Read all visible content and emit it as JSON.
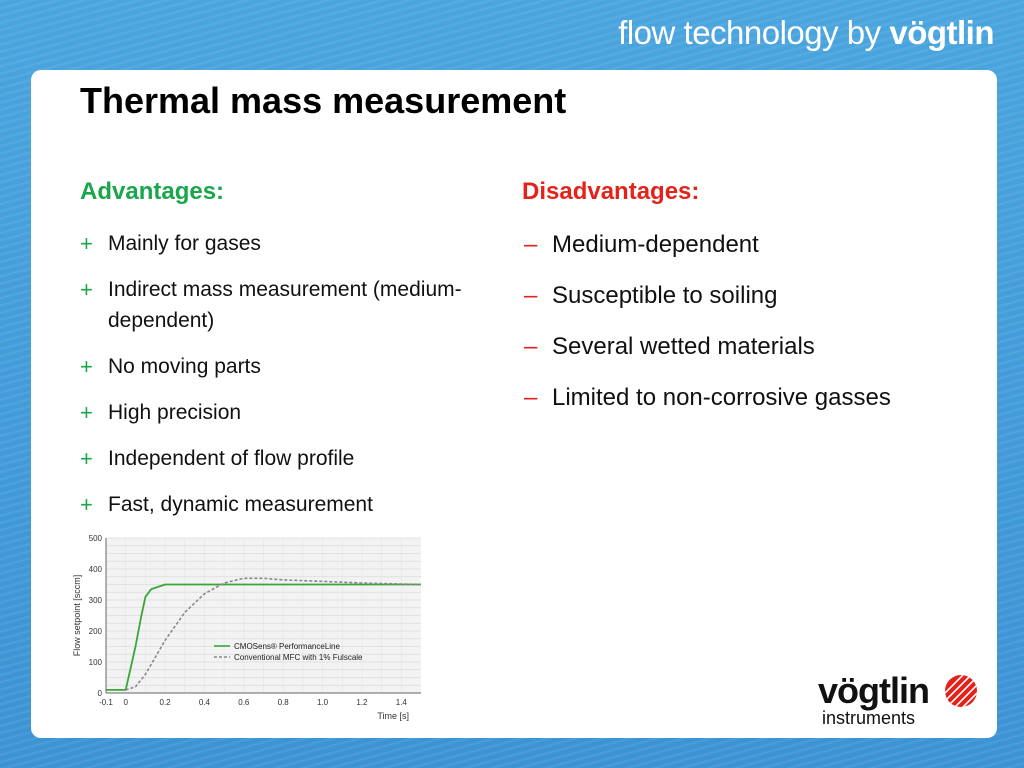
{
  "header": {
    "tagline_prefix": "flow technology by",
    "tagline_brand": "vögtlin"
  },
  "slide": {
    "title": "Thermal mass measurement"
  },
  "advantages": {
    "heading": "Advantages:",
    "marker": "+",
    "items": [
      "Mainly for gases",
      "Indirect mass measurement (medium-dependent)",
      "No moving parts",
      "High precision",
      "Independent of flow profile",
      "Fast, dynamic measurement"
    ]
  },
  "disadvantages": {
    "heading": "Disadvantages:",
    "marker": "–",
    "items": [
      "Medium-dependent",
      "Susceptible to soiling",
      "Several wetted materials",
      "Limited to non-corrosive gasses"
    ]
  },
  "logo": {
    "wordmark": "vögtlin",
    "subtitle": "instruments"
  },
  "colors": {
    "accent_green": "#1aa64a",
    "accent_red": "#e3231b",
    "background_blue": "#4ea3dc"
  },
  "chart_data": {
    "type": "line",
    "title": "",
    "xlabel": "Time [s]",
    "ylabel": "Flow setpoint [sccm]",
    "xlim": [
      -0.1,
      1.5
    ],
    "ylim": [
      0,
      500
    ],
    "x_ticks": [
      "-0.1",
      "0",
      "0.2",
      "0.4",
      "0.6",
      "0.8",
      "1.0",
      "1.2",
      "1.4"
    ],
    "y_ticks": [
      "0",
      "100",
      "200",
      "300",
      "400",
      "500"
    ],
    "grid": true,
    "legend_position": "bottom-right",
    "series": [
      {
        "name": "CMOSens® PerformanceLine",
        "color": "#3aa63a",
        "style": "solid",
        "x": [
          -0.1,
          0.0,
          0.05,
          0.08,
          0.1,
          0.13,
          0.2,
          0.3,
          0.5,
          1.0,
          1.5
        ],
        "y": [
          10,
          10,
          150,
          250,
          310,
          335,
          350,
          350,
          350,
          350,
          350
        ]
      },
      {
        "name": "Conventional MFC with 1% Fulscale",
        "color": "#888888",
        "style": "dashed",
        "x": [
          0.0,
          0.05,
          0.1,
          0.2,
          0.3,
          0.4,
          0.5,
          0.6,
          0.7,
          0.8,
          1.0,
          1.2,
          1.5
        ],
        "y": [
          10,
          20,
          60,
          170,
          260,
          320,
          355,
          370,
          370,
          365,
          360,
          355,
          350
        ]
      }
    ]
  }
}
